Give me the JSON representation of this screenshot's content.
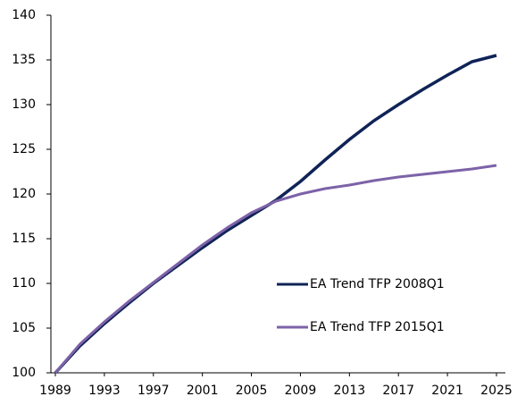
{
  "chart_data": {
    "type": "line",
    "x": [
      1989,
      1991,
      1993,
      1995,
      1997,
      1999,
      2001,
      2003,
      2005,
      2007,
      2009,
      2011,
      2013,
      2015,
      2017,
      2019,
      2021,
      2023,
      2025
    ],
    "series": [
      {
        "name": "EA Trend TFP 2008Q1",
        "color": "#0f2357",
        "values": [
          100,
          103,
          105.5,
          107.8,
          110,
          112,
          114,
          115.9,
          117.6,
          119.3,
          121.4,
          123.8,
          126.1,
          128.2,
          130,
          131.7,
          133.3,
          134.8,
          135.5
        ]
      },
      {
        "name": "EA Trend TFP 2015Q1",
        "color": "#7d62a8",
        "values": [
          100,
          103.2,
          105.7,
          108,
          110.1,
          112.2,
          114.3,
          116.2,
          117.9,
          119.2,
          120,
          120.6,
          121,
          121.5,
          121.9,
          122.2,
          122.5,
          122.8,
          123.2
        ]
      }
    ],
    "xlim": [
      1989,
      2025
    ],
    "xticks": [
      1989,
      1993,
      1997,
      2001,
      2005,
      2009,
      2013,
      2017,
      2021,
      2025
    ],
    "ylim": [
      100,
      140
    ],
    "yticks": [
      100,
      105,
      110,
      115,
      120,
      125,
      130,
      135,
      140
    ],
    "grid": false,
    "legend": "right"
  }
}
